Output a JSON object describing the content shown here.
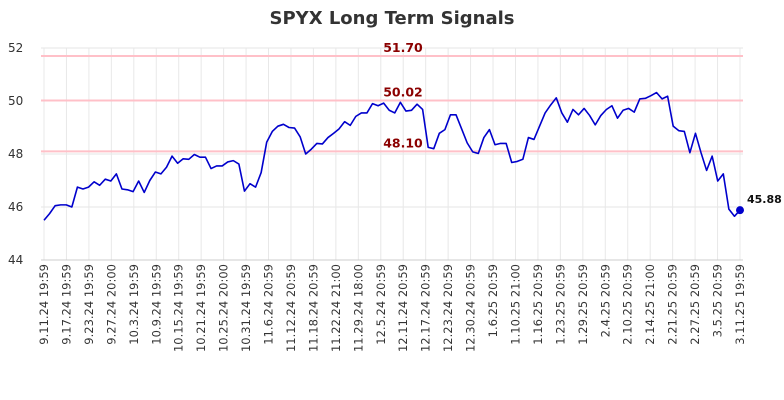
{
  "chart_data": {
    "type": "line",
    "title": "SPYX Long Term Signals",
    "xlabel": "",
    "ylabel": "",
    "ylim": [
      44,
      52
    ],
    "yticks": [
      44,
      46,
      48,
      50,
      52
    ],
    "grid": true,
    "line_color": "#0000cc",
    "reference_line_color": "#ffc0c8",
    "label_color": "#8b0000",
    "x_tick_labels": [
      "9.11.24 19:59",
      "9.17.24 19:59",
      "9.23.24 19:59",
      "9.27.24 20:00",
      "10.3.24 19:59",
      "10.9.24 19:59",
      "10.15.24 19:59",
      "10.21.24 19:59",
      "10.25.24 20:00",
      "10.31.24 19:59",
      "11.6.24 20:59",
      "11.12.24 20:59",
      "11.18.24 20:59",
      "11.22.24 21:00",
      "11.29.24 18:00",
      "12.5.24 20:59",
      "12.11.24 20:59",
      "12.17.24 20:59",
      "12.23.24 20:59",
      "12.30.24 20:59",
      "1.6.25 20:59",
      "1.10.25 21:00",
      "1.16.25 20:59",
      "1.23.25 20:59",
      "1.29.25 20:59",
      "2.4.25 20:59",
      "2.10.25 20:59",
      "2.14.25 21:00",
      "2.21.25 20:59",
      "2.27.25 20:59",
      "3.5.25 20:59",
      "3.11.25 19:59"
    ],
    "series": [
      {
        "values": [
          45.5,
          45.75,
          46.05,
          46.08,
          46.08,
          46.0,
          46.75,
          46.68,
          46.75,
          46.95,
          46.82,
          47.05,
          46.98,
          47.25,
          46.68,
          46.65,
          46.58,
          46.98,
          46.55,
          47.0,
          47.32,
          47.25,
          47.5,
          47.92,
          47.65,
          47.82,
          47.8,
          47.98,
          47.88,
          47.88,
          47.45,
          47.55,
          47.55,
          47.7,
          47.75,
          47.62,
          46.6,
          46.88,
          46.75,
          47.3,
          48.45,
          48.85,
          49.05,
          49.12,
          49.0,
          48.98,
          48.65,
          48.0,
          48.18,
          48.4,
          48.38,
          48.62,
          48.78,
          48.95,
          49.22,
          49.08,
          49.42,
          49.55,
          49.55,
          49.9,
          49.82,
          49.92,
          49.65,
          49.55,
          49.95,
          49.62,
          49.65,
          49.88,
          49.68,
          48.25,
          48.2,
          48.78,
          48.92,
          49.48,
          49.48,
          48.95,
          48.42,
          48.08,
          48.02,
          48.62,
          48.92,
          48.35,
          48.4,
          48.4,
          47.68,
          47.72,
          47.8,
          48.62,
          48.55,
          49.05,
          49.55,
          49.85,
          50.12,
          49.55,
          49.2,
          49.68,
          49.48,
          49.72,
          49.45,
          49.1,
          49.45,
          49.68,
          49.82,
          49.35,
          49.65,
          49.72,
          49.58,
          50.08,
          50.1,
          50.2,
          50.32,
          50.08,
          50.18,
          49.05,
          48.88,
          48.85,
          48.05,
          48.78,
          48.05,
          47.38,
          47.92,
          46.98,
          47.25,
          45.92,
          45.65,
          45.88
        ]
      }
    ],
    "reference_lines": [
      {
        "value": 51.7,
        "label": "51.70"
      },
      {
        "value": 50.02,
        "label": "50.02"
      },
      {
        "value": 48.1,
        "label": "48.10"
      }
    ],
    "last_value": {
      "value": 45.88,
      "label": "45.88"
    }
  }
}
